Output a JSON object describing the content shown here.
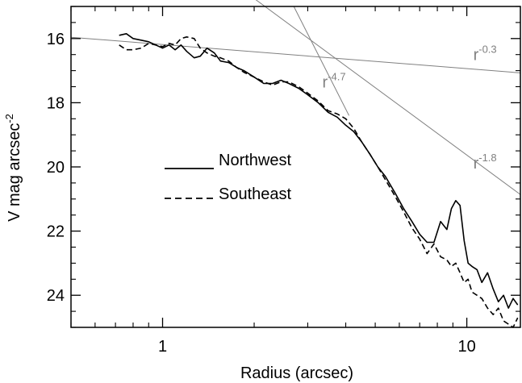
{
  "chart_data": {
    "type": "line",
    "xlabel": "Radius (arcsec)",
    "ylabel": "V mag arcsec",
    "ylabel_sup": "-2",
    "x_scale": "log",
    "xlim": [
      0.5,
      15
    ],
    "ylim": [
      25,
      15
    ],
    "x_major_ticks": [
      {
        "value": 1,
        "label": "1"
      },
      {
        "value": 10,
        "label": "10"
      }
    ],
    "x_minor_ticks": [
      0.5,
      0.6,
      0.7,
      0.8,
      0.9,
      2,
      3,
      4,
      5,
      6,
      7,
      8,
      9
    ],
    "y_major_ticks": [
      {
        "value": 16,
        "label": "16"
      },
      {
        "value": 18,
        "label": "18"
      },
      {
        "value": 20,
        "label": "20"
      },
      {
        "value": 22,
        "label": "22"
      },
      {
        "value": 24,
        "label": "24"
      }
    ],
    "y_minor_ticks": [
      15,
      15.5,
      16.5,
      17,
      17.5,
      18.5,
      19,
      19.5,
      20.5,
      21,
      21.5,
      22.5,
      23,
      23.5,
      24.5,
      25
    ],
    "legend_position": "center-left",
    "series": [
      {
        "name": "Northwest",
        "style": "solid",
        "color": "#000000",
        "x": [
          0.72,
          0.76,
          0.8,
          0.85,
          0.9,
          0.95,
          1.0,
          1.05,
          1.1,
          1.15,
          1.2,
          1.27,
          1.33,
          1.4,
          1.48,
          1.55,
          1.65,
          1.75,
          1.85,
          2.0,
          2.15,
          2.3,
          2.45,
          2.6,
          2.8,
          3.0,
          3.25,
          3.5,
          3.75,
          4.0,
          4.25,
          4.5,
          4.8,
          5.1,
          5.4,
          5.8,
          6.2,
          6.6,
          7.0,
          7.4,
          7.8,
          8.2,
          8.6,
          8.9,
          9.2,
          9.5,
          9.8,
          10.1,
          10.4,
          10.8,
          11.2,
          11.7,
          12.2,
          12.7,
          13.2,
          13.7,
          14.2,
          14.7
        ],
        "y": [
          15.9,
          15.85,
          16.0,
          16.05,
          16.1,
          16.2,
          16.3,
          16.2,
          16.35,
          16.2,
          16.4,
          16.6,
          16.55,
          16.3,
          16.45,
          16.7,
          16.75,
          16.9,
          17.0,
          17.2,
          17.4,
          17.4,
          17.3,
          17.4,
          17.55,
          17.75,
          18.0,
          18.3,
          18.45,
          18.7,
          18.9,
          19.2,
          19.6,
          20.0,
          20.3,
          20.8,
          21.3,
          21.7,
          22.1,
          22.35,
          22.35,
          21.7,
          21.95,
          21.3,
          21.05,
          21.2,
          22.3,
          23.0,
          23.1,
          23.2,
          23.6,
          23.3,
          23.8,
          24.2,
          24.0,
          24.4,
          24.1,
          24.3
        ]
      },
      {
        "name": "Southeast",
        "style": "dashed",
        "color": "#000000",
        "x": [
          0.72,
          0.76,
          0.8,
          0.85,
          0.9,
          0.95,
          1.0,
          1.05,
          1.1,
          1.15,
          1.2,
          1.27,
          1.33,
          1.4,
          1.48,
          1.55,
          1.65,
          1.75,
          1.85,
          2.0,
          2.15,
          2.3,
          2.45,
          2.6,
          2.8,
          3.0,
          3.25,
          3.5,
          3.75,
          4.0,
          4.25,
          4.5,
          4.8,
          5.1,
          5.4,
          5.8,
          6.2,
          6.6,
          7.0,
          7.4,
          7.8,
          8.2,
          8.6,
          8.9,
          9.2,
          9.5,
          9.8,
          10.1,
          10.4,
          10.8,
          11.2,
          11.7,
          12.2,
          12.7,
          13.2,
          13.7,
          14.2,
          14.7
        ],
        "y": [
          16.2,
          16.35,
          16.35,
          16.3,
          16.15,
          16.2,
          16.25,
          16.15,
          16.2,
          16.0,
          15.95,
          16.0,
          16.3,
          16.45,
          16.55,
          16.6,
          16.7,
          16.9,
          17.05,
          17.2,
          17.35,
          17.45,
          17.35,
          17.35,
          17.5,
          17.7,
          17.95,
          18.25,
          18.35,
          18.5,
          18.8,
          19.2,
          19.6,
          20.0,
          20.4,
          20.9,
          21.4,
          21.9,
          22.25,
          22.7,
          22.4,
          22.8,
          22.9,
          23.1,
          23.0,
          23.3,
          23.6,
          23.5,
          23.9,
          24.0,
          24.1,
          24.4,
          24.6,
          24.4,
          24.8,
          24.9,
          25.0,
          24.7
        ]
      }
    ],
    "fit_lines": [
      {
        "label": "r",
        "exponent": "-0.3",
        "points": [
          [
            0.5,
            15.96
          ],
          [
            15,
            17.07
          ]
        ],
        "label_at": [
          10.5,
          16.67
        ]
      },
      {
        "label": "r",
        "exponent": "-4.7",
        "points": [
          [
            2.7,
            15.0
          ],
          [
            4.1,
            18.4
          ]
        ],
        "label_at": [
          3.35,
          17.53
        ]
      },
      {
        "label": "r",
        "exponent": "-1.8",
        "points": [
          [
            0.5,
            10.55
          ],
          [
            15,
            20.86
          ]
        ],
        "label_at": [
          10.5,
          20.05
        ]
      }
    ],
    "colors": {
      "series": "#000000",
      "fit": "#808080",
      "axes": "#000000"
    }
  }
}
